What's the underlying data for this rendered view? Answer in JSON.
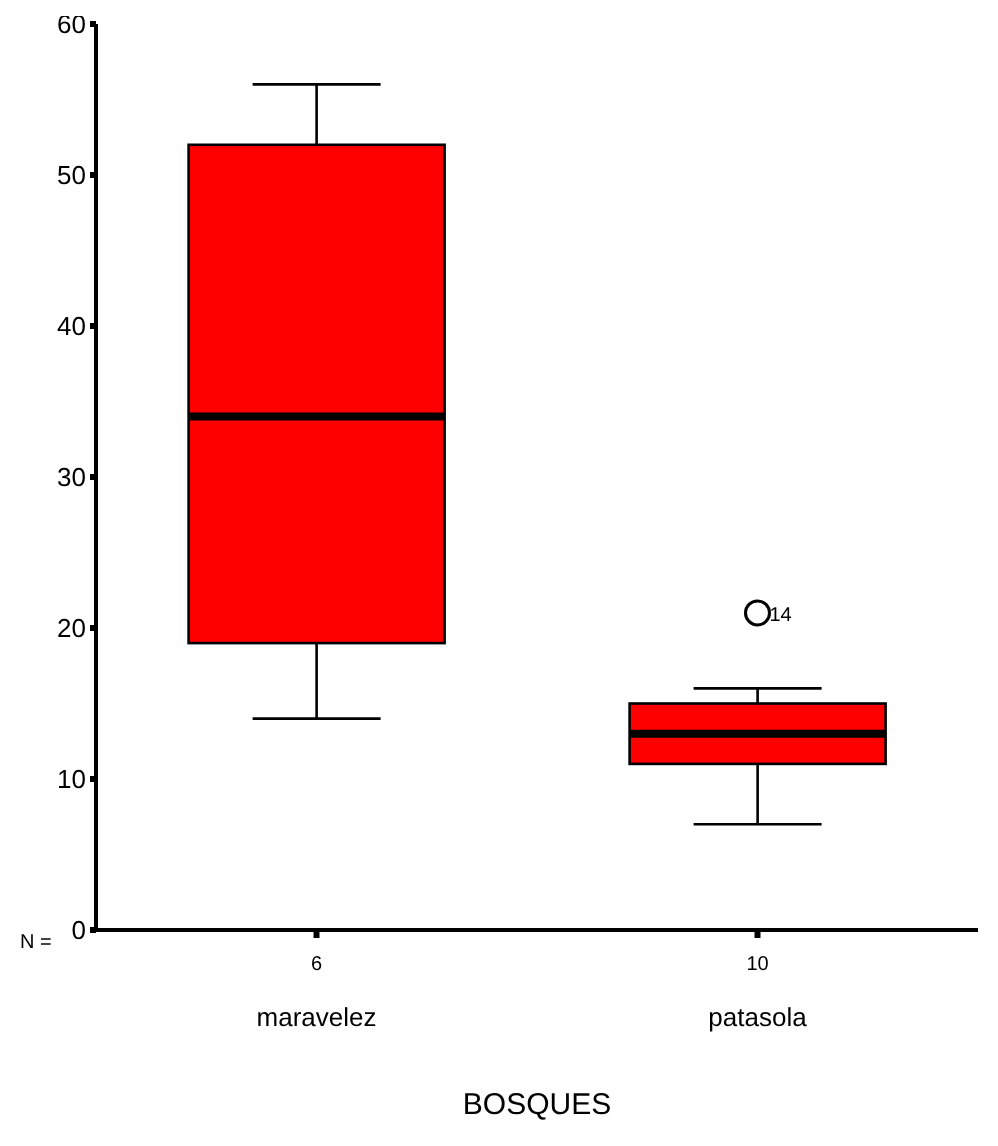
{
  "chart_data": {
    "type": "box",
    "xlabel": "BOSQUES",
    "categories": [
      "maravelez",
      "patasola"
    ],
    "color": "#ff0000",
    "boxes": [
      {
        "low": 14,
        "q1": 19,
        "median": 34,
        "q3": 52,
        "high": 56
      },
      {
        "low": 7,
        "q1": 11,
        "median": 13,
        "q3": 15,
        "high": 16,
        "outliers": [
          21
        ]
      }
    ],
    "ylim": [
      0,
      60
    ],
    "yticks": [
      0,
      10,
      20,
      30,
      40,
      50,
      60
    ],
    "grid": false,
    "legend": false,
    "annotations": [
      "N =",
      {
        "text": "6",
        "x": "maravelez"
      },
      {
        "text": "10",
        "x": "patasola"
      },
      "14"
    ]
  }
}
